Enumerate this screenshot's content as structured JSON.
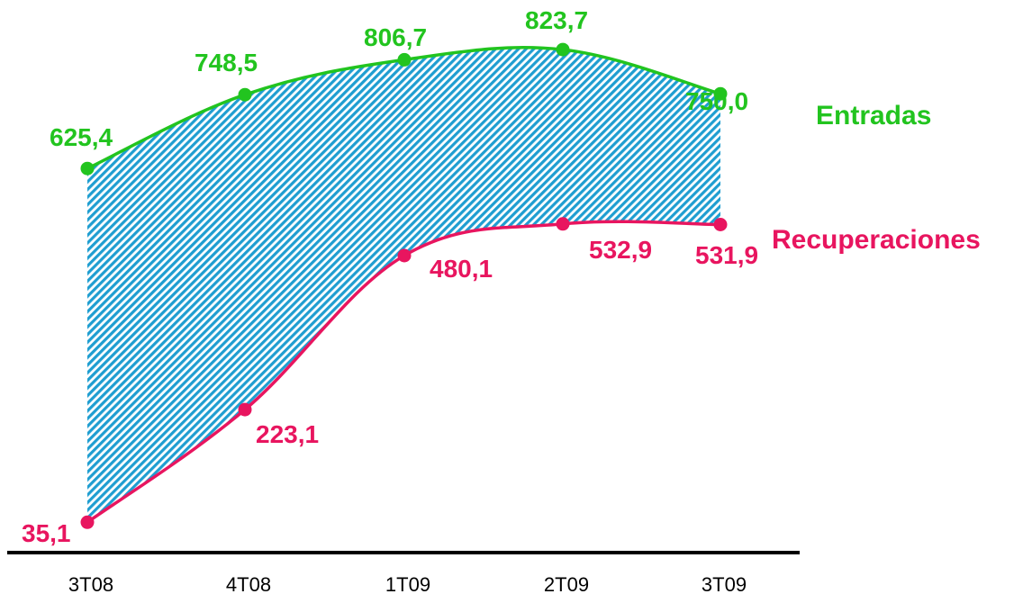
{
  "chart_data": {
    "type": "area",
    "categories": [
      "3T08",
      "4T08",
      "1T09",
      "2T09",
      "3T09"
    ],
    "series": [
      {
        "name": "Entradas",
        "values": [
          625.4,
          748.5,
          806.7,
          823.7,
          750.0
        ],
        "labels": [
          "625,4",
          "748,5",
          "806,7",
          "823,7",
          "750,0"
        ],
        "color": "#22c41f"
      },
      {
        "name": "Recuperaciones",
        "values": [
          35.1,
          223.1,
          480.1,
          532.9,
          531.9
        ],
        "labels": [
          "35,1",
          "223,1",
          "480,1",
          "532,9",
          "531,9"
        ],
        "color": "#e8155f"
      }
    ],
    "fill_between": {
      "color": "#1f9ed1",
      "pattern": "diagonal-hatch"
    },
    "axis_color": "#000000",
    "ylim": [
      0,
      900
    ],
    "grid": false,
    "legend": "inline-right"
  }
}
